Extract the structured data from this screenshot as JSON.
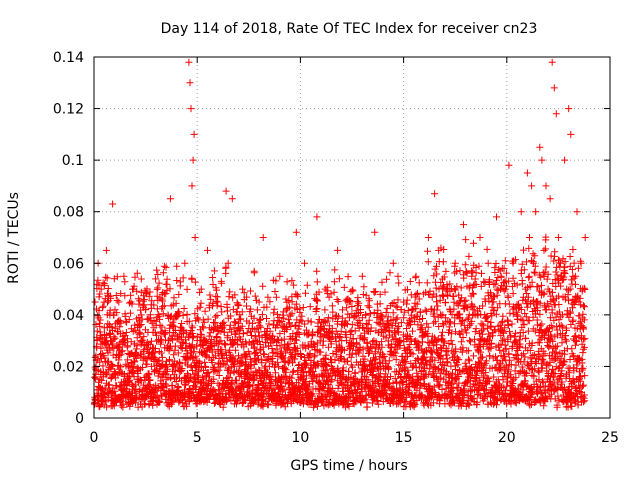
{
  "chart_data": {
    "type": "scatter",
    "title": "Day 114 of 2018, Rate Of TEC Index for receiver cn23",
    "xlabel": "GPS time / hours",
    "ylabel": "ROTI / TECUs",
    "xlim": [
      0,
      25
    ],
    "ylim": [
      0,
      0.14
    ],
    "xticks": [
      "0",
      "5",
      "10",
      "15",
      "20",
      "25"
    ],
    "yticks": [
      "0",
      "0.02",
      "0.04",
      "0.06",
      "0.08",
      "0.1",
      "0.12",
      "0.14"
    ],
    "grid": true,
    "marker": "+",
    "marker_color": "#ff0000",
    "series": [
      {
        "name": "ROTI",
        "x": [
          0.05,
          0.1,
          0.15,
          0.2,
          0.25,
          0.3,
          0.35,
          0.4,
          0.45,
          0.5,
          0.6,
          0.7,
          0.8,
          0.9,
          0.95,
          1.0,
          1.1,
          1.2,
          1.3,
          1.5,
          1.7,
          1.9,
          2.1,
          2.3,
          2.5,
          2.7,
          2.9,
          3.1,
          3.3,
          3.5,
          3.6,
          3.7,
          3.8,
          4.0,
          4.2,
          4.4,
          4.6,
          4.65,
          4.7,
          4.75,
          4.8,
          4.85,
          4.9,
          5.0,
          5.2,
          5.4,
          5.5,
          5.6,
          5.8,
          6.0,
          6.2,
          6.4,
          6.5,
          6.6,
          6.7,
          6.8,
          7.0,
          7.2,
          7.5,
          7.8,
          8.0,
          8.2,
          8.5,
          8.8,
          9.0,
          9.2,
          9.5,
          9.8,
          10.0,
          10.2,
          10.5,
          10.8,
          11.0,
          11.2,
          11.5,
          11.8,
          12.0,
          12.3,
          12.6,
          13.0,
          13.3,
          13.6,
          13.9,
          14.2,
          14.5,
          14.8,
          15.0,
          15.3,
          15.6,
          15.9,
          16.2,
          16.5,
          16.7,
          16.9,
          17.1,
          17.3,
          17.5,
          17.7,
          17.9,
          18.1,
          18.3,
          18.5,
          18.7,
          18.9,
          19.1,
          19.3,
          19.5,
          19.7,
          19.9,
          20.1,
          20.3,
          20.5,
          20.7,
          20.9,
          21.0,
          21.1,
          21.2,
          21.3,
          21.4,
          21.5,
          21.6,
          21.7,
          21.8,
          21.9,
          22.0,
          22.1,
          22.2,
          22.3,
          22.4,
          22.5,
          22.6,
          22.7,
          22.8,
          22.9,
          23.0,
          23.1,
          23.2,
          23.3,
          23.4,
          23.5,
          23.6,
          23.7,
          23.8
        ],
        "y": [
          0.045,
          0.02,
          0.03,
          0.06,
          0.012,
          0.038,
          0.05,
          0.025,
          0.016,
          0.035,
          0.065,
          0.022,
          0.03,
          0.083,
          0.04,
          0.018,
          0.028,
          0.045,
          0.012,
          0.032,
          0.02,
          0.05,
          0.015,
          0.03,
          0.042,
          0.012,
          0.035,
          0.022,
          0.048,
          0.015,
          0.03,
          0.085,
          0.02,
          0.04,
          0.018,
          0.06,
          0.138,
          0.13,
          0.12,
          0.09,
          0.1,
          0.11,
          0.07,
          0.03,
          0.05,
          0.02,
          0.065,
          0.035,
          0.015,
          0.045,
          0.025,
          0.088,
          0.06,
          0.03,
          0.085,
          0.02,
          0.035,
          0.05,
          0.015,
          0.03,
          0.045,
          0.07,
          0.02,
          0.035,
          0.055,
          0.015,
          0.04,
          0.072,
          0.025,
          0.06,
          0.018,
          0.078,
          0.035,
          0.05,
          0.02,
          0.065,
          0.03,
          0.045,
          0.015,
          0.055,
          0.025,
          0.072,
          0.04,
          0.02,
          0.06,
          0.03,
          0.045,
          0.025,
          0.055,
          0.035,
          0.07,
          0.087,
          0.065,
          0.04,
          0.05,
          0.03,
          0.06,
          0.045,
          0.075,
          0.035,
          0.055,
          0.04,
          0.07,
          0.03,
          0.06,
          0.045,
          0.078,
          0.05,
          0.035,
          0.098,
          0.06,
          0.04,
          0.08,
          0.05,
          0.095,
          0.07,
          0.09,
          0.06,
          0.08,
          0.045,
          0.105,
          0.1,
          0.065,
          0.09,
          0.05,
          0.085,
          0.138,
          0.128,
          0.118,
          0.07,
          0.06,
          0.04,
          0.1,
          0.05,
          0.12,
          0.11,
          0.055,
          0.03,
          0.08,
          0.045,
          0.06,
          0.035,
          0.07
        ],
        "background_band": {
          "x_range": [
            0,
            23.8
          ],
          "y_low_range": [
            0.004,
            0.008
          ],
          "y_high_range": [
            0.035,
            0.06
          ]
        }
      }
    ]
  }
}
